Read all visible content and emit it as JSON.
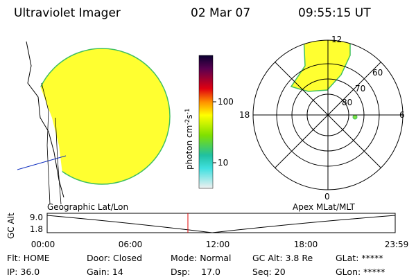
{
  "header": {
    "title": "Ultraviolet Imager",
    "date": "02 Mar 07",
    "time": "09:55:15 UT"
  },
  "colorbar": {
    "label": "photon cm",
    "exp1": "-2",
    "unit2": "s",
    "exp2": "-1",
    "ticks": [
      "100",
      "10"
    ]
  },
  "map_label": "Geographic Lat/Lon",
  "polar": {
    "label": "Apex MLat/MLT",
    "hours": [
      "12",
      "18",
      "6",
      "0"
    ],
    "lats": [
      "60",
      "70",
      "80"
    ]
  },
  "altitude": {
    "ylabel": "GC Alt",
    "yticks": [
      "9.0",
      "1.8"
    ],
    "xticks": [
      "00:00",
      "06:00",
      "12:00",
      "18:00",
      "23:59"
    ]
  },
  "status": [
    [
      "Flt: HOME",
      "Door: Closed",
      "Mode: Normal",
      "GC Alt: 3.8 Re",
      "GLat: *****"
    ],
    [
      "IP: 36.0",
      "Gain: 14",
      "Dsp:    17.0",
      "Seq: 20",
      "GLon: *****"
    ]
  ]
}
